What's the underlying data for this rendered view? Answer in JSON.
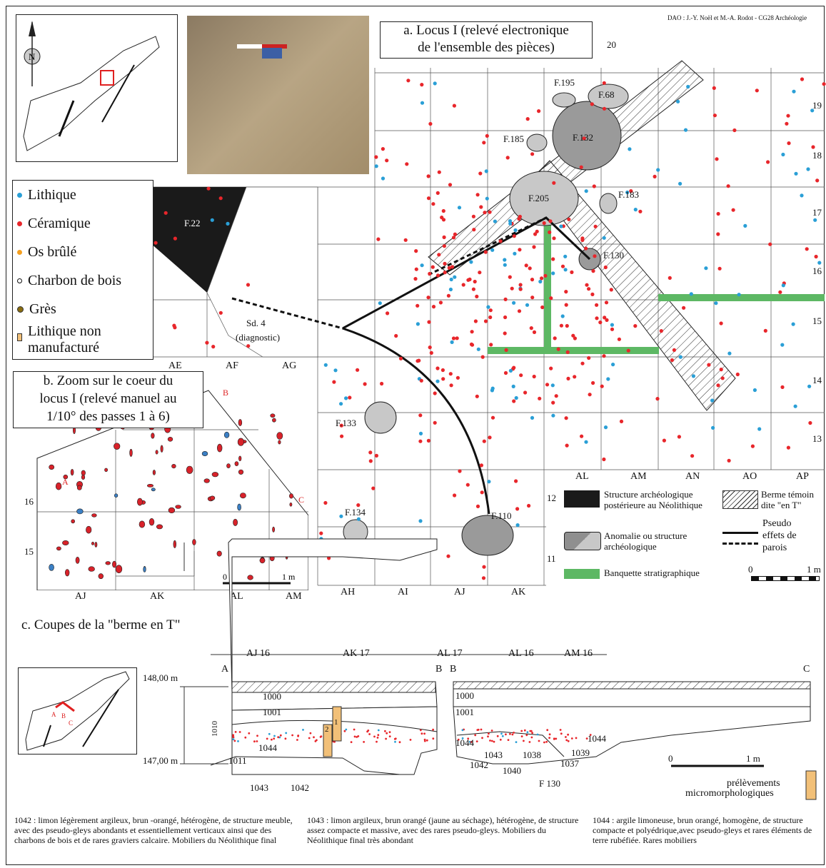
{
  "credit": "DAO : J.-Y. Noël et M.-A. Rodot - CG28 Archéologie",
  "panel_a": {
    "title_line1": "a. Locus I (relevé electronique",
    "title_line2": "de l'ensemble des pièces)",
    "col_labels_top": [
      "AE",
      "AF",
      "AG"
    ],
    "col_labels_right": [
      "AL",
      "AM",
      "AN",
      "AO",
      "AP"
    ],
    "col_labels_bottom": [
      "AH",
      "AI",
      "AJ",
      "AK"
    ],
    "row_labels": [
      "20",
      "19",
      "18",
      "17",
      "16",
      "15",
      "14",
      "13",
      "12",
      "11"
    ],
    "features": [
      "F.195",
      "F.68",
      "F.132",
      "F.185",
      "F.205",
      "F.183",
      "F.130",
      "F.22",
      "F.133",
      "F.134",
      "F.110"
    ],
    "sd4_line1": "Sd. 4",
    "sd4_line2": "(diagnostic)",
    "north": "N"
  },
  "legend_symbols": [
    {
      "label": "Lithique",
      "color": "#2a9fd6",
      "kind": "dot"
    },
    {
      "label": "Céramique",
      "color": "#e8262b",
      "kind": "dot"
    },
    {
      "label": "Os brûlé",
      "color": "#f5a020",
      "kind": "dot"
    },
    {
      "label": "Charbon de bois",
      "color": "#ffffff",
      "kind": "ring"
    },
    {
      "label": "Grès",
      "color": "#8a6d10",
      "kind": "dot"
    },
    {
      "label": "Lithique non manufacturé",
      "color": "#f2c078",
      "kind": "rect"
    }
  ],
  "legend_features": {
    "structure_post": "Structure archéologique postérieure au Néolithique",
    "berme": "Berme témoin dite \"en T\"",
    "anomalie": "Anomalie ou structure archéologique",
    "pseudo": "Pseudo effets de parois",
    "banquette": "Banquette stratigraphique",
    "scale_0": "0",
    "scale_1": "1 m"
  },
  "panel_b": {
    "title_line1": "b. Zoom sur le coeur du",
    "title_line2": "locus I (relevé manuel au",
    "title_line3": "1/10° des passes 1 à 6)",
    "cols": [
      "AJ",
      "AK",
      "AL",
      "AM"
    ],
    "rows": [
      "16",
      "15"
    ],
    "points": [
      "A",
      "B",
      "C"
    ],
    "scale_0": "0",
    "scale_1": "1 m"
  },
  "panel_c": {
    "title": "c. Coupes de la \"berme en T\"",
    "squares": [
      "AJ 16",
      "AK 17",
      "AL 17",
      "AL 16",
      "AM 16"
    ],
    "elev_top": "148,00 m",
    "elev_bottom": "147,00 m",
    "ends": [
      "A",
      "B",
      "B",
      "C"
    ],
    "layers": [
      "1000",
      "1001",
      "1010",
      "1044",
      "1011",
      "1043",
      "1042",
      "1038",
      "1039",
      "1040",
      "1037"
    ],
    "samples": [
      "1",
      "2"
    ],
    "f130": "F 130",
    "scale_0": "0",
    "scale_1": "1 m",
    "prelev_line1": "prélèvements",
    "prelev_line2": "micromorphologiques"
  },
  "descriptions": {
    "d1042": "1042 : limon légèrement argileux, brun -orangé, hétérogène, de structure meuble, avec des pseudo-gleys abondants et essentiellement verticaux ainsi que des charbons de bois et de rares graviers calcaire. Mobiliers du Néolithique final",
    "d1043": "1043 : limon argileux, brun orangé (jaune au séchage), hétérogène, de structure assez compacte et massive, avec des rares pseudo-gleys. Mobiliers du Néolithique final très abondant",
    "d1044": "1044 : argile limoneuse, brun orangé, homogène, de structure compacte et polyédrique,avec pseudo-gleys et rares éléments de terre rubéfiée. Rares mobiliers"
  }
}
